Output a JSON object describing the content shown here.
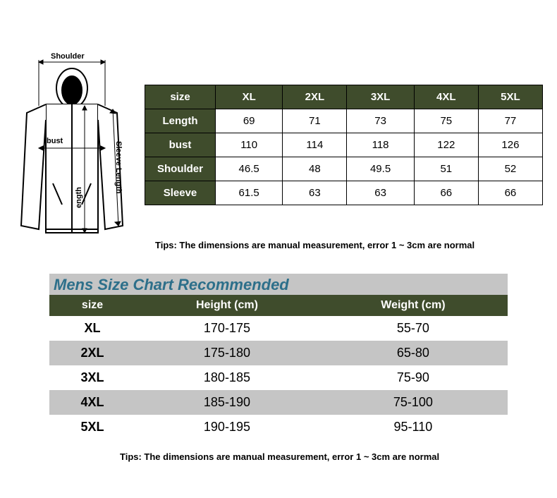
{
  "colors": {
    "header_bg": "#3f4c2c",
    "header_text": "#ffffff",
    "grey_row": "#c5c5c5",
    "title_text": "#2d6f8a",
    "page_bg": "#ffffff",
    "stroke": "#000000"
  },
  "diagram": {
    "labels": {
      "shoulder": "Shoulder",
      "bust": "bust",
      "length": "ength",
      "sleeve": "Sleeve Length"
    }
  },
  "table1": {
    "header": [
      "size",
      "XL",
      "2XL",
      "3XL",
      "4XL",
      "5XL"
    ],
    "rows": [
      {
        "label": "Length",
        "vals": [
          "69",
          "71",
          "73",
          "75",
          "77"
        ]
      },
      {
        "label": "bust",
        "vals": [
          "110",
          "114",
          "118",
          "122",
          "126"
        ]
      },
      {
        "label": "Shoulder",
        "vals": [
          "46.5",
          "48",
          "49.5",
          "51",
          "52"
        ]
      },
      {
        "label": "Sleeve",
        "vals": [
          "61.5",
          "63",
          "63",
          "66",
          "66"
        ]
      }
    ]
  },
  "tips": "Tips: The dimensions are manual measurement, error 1 ~ 3cm are normal",
  "recommend_title": "Mens Size Chart Recommended",
  "table2": {
    "header": [
      "size",
      "Height (cm)",
      "Weight (cm)"
    ],
    "rows": [
      {
        "size": "XL",
        "height": "170-175",
        "weight": "55-70",
        "grey": false
      },
      {
        "size": "2XL",
        "height": "175-180",
        "weight": "65-80",
        "grey": true
      },
      {
        "size": "3XL",
        "height": "180-185",
        "weight": "75-90",
        "grey": false
      },
      {
        "size": "4XL",
        "height": "185-190",
        "weight": "75-100",
        "grey": true
      },
      {
        "size": "5XL",
        "height": "190-195",
        "weight": "95-110",
        "grey": false
      }
    ]
  }
}
